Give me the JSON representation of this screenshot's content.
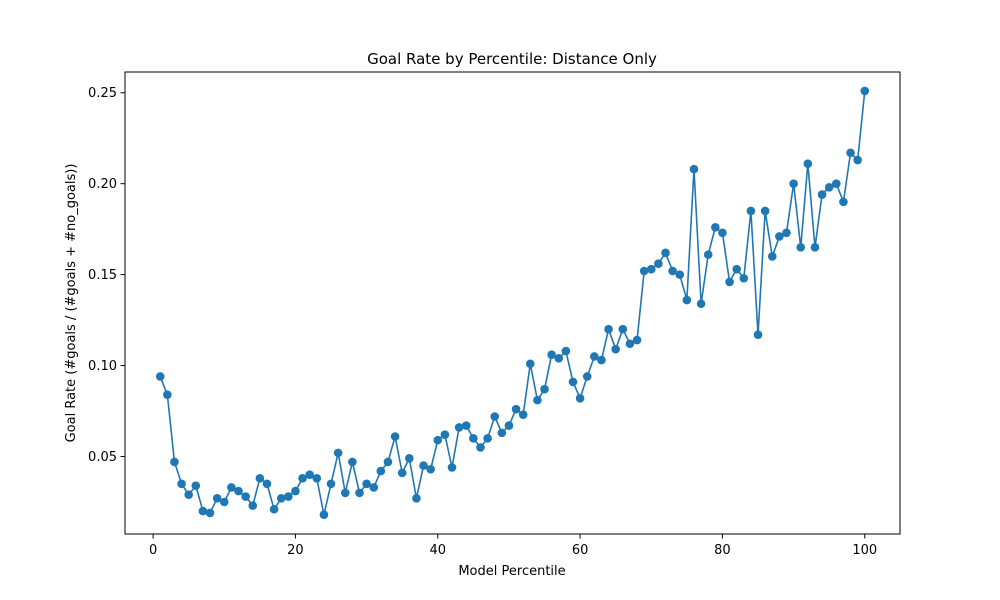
{
  "chart_data": {
    "type": "line",
    "title": "Goal Rate by Percentile: Distance Only",
    "xlabel": "Model Percentile",
    "ylabel": "Goal Rate (#goals / (#goals + #no_goals))",
    "xlim": [
      -3.95,
      104.95
    ],
    "ylim": [
      0.0074,
      0.2614
    ],
    "x_ticks": [
      0,
      20,
      40,
      60,
      80,
      100
    ],
    "x_tick_labels": [
      "0",
      "20",
      "40",
      "60",
      "80",
      "100"
    ],
    "y_ticks": [
      0.05,
      0.1,
      0.15,
      0.2,
      0.25
    ],
    "y_tick_labels": [
      "0.05",
      "0.10",
      "0.15",
      "0.20",
      "0.25"
    ],
    "grid": false,
    "color": "#1f77b4",
    "series": [
      {
        "x": [
          1,
          2,
          3,
          4,
          5,
          6,
          7,
          8,
          9,
          10,
          11,
          12,
          13,
          14,
          15,
          16,
          17,
          18,
          19,
          20,
          21,
          22,
          23,
          24,
          25,
          26,
          27,
          28,
          29,
          30,
          31,
          32,
          33,
          34,
          35,
          36,
          37,
          38,
          39,
          40,
          41,
          42,
          43,
          44,
          45,
          46,
          47,
          48,
          49,
          50,
          51,
          52,
          53,
          54,
          55,
          56,
          57,
          58,
          59,
          60,
          61,
          62,
          63,
          64,
          65,
          66,
          67,
          68,
          69,
          70,
          71,
          72,
          73,
          74,
          75,
          76,
          77,
          78,
          79,
          80,
          81,
          82,
          83,
          84,
          85,
          86,
          87,
          88,
          89,
          90,
          91,
          92,
          93,
          94,
          95,
          96,
          97,
          98,
          99,
          100
        ],
        "values": [
          0.094,
          0.084,
          0.047,
          0.035,
          0.029,
          0.034,
          0.02,
          0.019,
          0.027,
          0.025,
          0.033,
          0.031,
          0.028,
          0.023,
          0.038,
          0.035,
          0.021,
          0.027,
          0.028,
          0.031,
          0.038,
          0.04,
          0.038,
          0.018,
          0.035,
          0.052,
          0.03,
          0.047,
          0.03,
          0.035,
          0.033,
          0.042,
          0.047,
          0.061,
          0.041,
          0.049,
          0.027,
          0.045,
          0.043,
          0.059,
          0.062,
          0.044,
          0.066,
          0.067,
          0.06,
          0.055,
          0.06,
          0.072,
          0.063,
          0.067,
          0.076,
          0.073,
          0.101,
          0.081,
          0.087,
          0.106,
          0.104,
          0.108,
          0.091,
          0.082,
          0.094,
          0.105,
          0.103,
          0.12,
          0.109,
          0.12,
          0.112,
          0.114,
          0.152,
          0.153,
          0.156,
          0.162,
          0.152,
          0.15,
          0.136,
          0.208,
          0.134,
          0.161,
          0.176,
          0.173,
          0.146,
          0.153,
          0.148,
          0.185,
          0.117,
          0.185,
          0.16,
          0.171,
          0.173,
          0.2,
          0.165,
          0.211,
          0.165,
          0.194,
          0.198,
          0.2,
          0.19,
          0.217,
          0.213,
          0.251
        ]
      }
    ]
  }
}
